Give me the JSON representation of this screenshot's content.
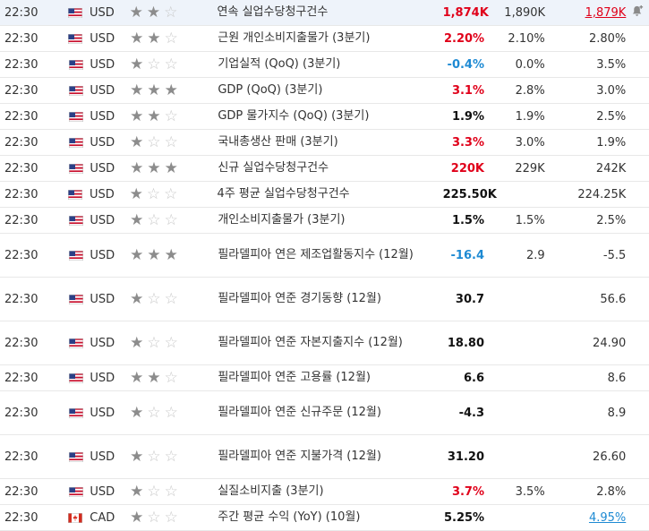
{
  "rows": [
    {
      "time": "22:30",
      "currency": "USD",
      "flag": "us",
      "stars": 2,
      "event": "연속 실업수당청구건수",
      "actual": "1,874K",
      "actual_color": "red",
      "forecast": "1,890K",
      "previous": "1,879K",
      "previous_color": "red",
      "previous_underline": true,
      "alert": true,
      "lines": 1
    },
    {
      "time": "22:30",
      "currency": "USD",
      "flag": "us",
      "stars": 2,
      "event": "근원 개인소비지출물가 (3분기)",
      "actual": "2.20%",
      "actual_color": "red",
      "forecast": "2.10%",
      "previous": "2.80%",
      "previous_color": "",
      "previous_underline": false,
      "alert": false,
      "lines": 1
    },
    {
      "time": "22:30",
      "currency": "USD",
      "flag": "us",
      "stars": 1,
      "event": "기업실적 (QoQ) (3분기)",
      "actual": "-0.4%",
      "actual_color": "blue",
      "forecast": "0.0%",
      "previous": "3.5%",
      "previous_color": "",
      "previous_underline": false,
      "alert": false,
      "lines": 1
    },
    {
      "time": "22:30",
      "currency": "USD",
      "flag": "us",
      "stars": 3,
      "event": "GDP (QoQ) (3분기)",
      "actual": "3.1%",
      "actual_color": "red",
      "forecast": "2.8%",
      "previous": "3.0%",
      "previous_color": "",
      "previous_underline": false,
      "alert": false,
      "lines": 1
    },
    {
      "time": "22:30",
      "currency": "USD",
      "flag": "us",
      "stars": 2,
      "event": "GDP 물가지수 (QoQ) (3분기)",
      "actual": "1.9%",
      "actual_color": "black",
      "forecast": "1.9%",
      "previous": "2.5%",
      "previous_color": "",
      "previous_underline": false,
      "alert": false,
      "lines": 1
    },
    {
      "time": "22:30",
      "currency": "USD",
      "flag": "us",
      "stars": 1,
      "event": "국내총생산 판매 (3분기)",
      "actual": "3.3%",
      "actual_color": "red",
      "forecast": "3.0%",
      "previous": "1.9%",
      "previous_color": "",
      "previous_underline": false,
      "alert": false,
      "lines": 1
    },
    {
      "time": "22:30",
      "currency": "USD",
      "flag": "us",
      "stars": 3,
      "event": "신규 실업수당청구건수",
      "actual": "220K",
      "actual_color": "red",
      "forecast": "229K",
      "previous": "242K",
      "previous_color": "",
      "previous_underline": false,
      "alert": false,
      "lines": 1
    },
    {
      "time": "22:30",
      "currency": "USD",
      "flag": "us",
      "stars": 1,
      "event": "4주 평균 실업수당청구건수",
      "actual": "225.50K",
      "actual_color": "black",
      "forecast": "",
      "previous": "224.25K",
      "previous_color": "",
      "previous_underline": false,
      "alert": false,
      "lines": 1
    },
    {
      "time": "22:30",
      "currency": "USD",
      "flag": "us",
      "stars": 1,
      "event": "개인소비지출물가 (3분기)",
      "actual": "1.5%",
      "actual_color": "black",
      "forecast": "1.5%",
      "previous": "2.5%",
      "previous_color": "",
      "previous_underline": false,
      "alert": false,
      "lines": 1
    },
    {
      "time": "22:30",
      "currency": "USD",
      "flag": "us",
      "stars": 3,
      "event": "필라델피아 연은 제조업활동지수 (12월)",
      "actual": "-16.4",
      "actual_color": "blue",
      "forecast": "2.9",
      "previous": "-5.5",
      "previous_color": "",
      "previous_underline": false,
      "alert": false,
      "lines": 2
    },
    {
      "time": "22:30",
      "currency": "USD",
      "flag": "us",
      "stars": 1,
      "event": "필라델피아 연준 경기동향 (12월)",
      "actual": "30.7",
      "actual_color": "black",
      "forecast": "",
      "previous": "56.6",
      "previous_color": "",
      "previous_underline": false,
      "alert": false,
      "lines": 2
    },
    {
      "time": "22:30",
      "currency": "USD",
      "flag": "us",
      "stars": 1,
      "event": "필라델피아 연준 자본지출지수 (12월)",
      "actual": "18.80",
      "actual_color": "black",
      "forecast": "",
      "previous": "24.90",
      "previous_color": "",
      "previous_underline": false,
      "alert": false,
      "lines": 2
    },
    {
      "time": "22:30",
      "currency": "USD",
      "flag": "us",
      "stars": 2,
      "event": "필라델피아 연준 고용률 (12월)",
      "actual": "6.6",
      "actual_color": "black",
      "forecast": "",
      "previous": "8.6",
      "previous_color": "",
      "previous_underline": false,
      "alert": false,
      "lines": 1
    },
    {
      "time": "22:30",
      "currency": "USD",
      "flag": "us",
      "stars": 1,
      "event": "필라델피아 연준 신규주문 (12월)",
      "actual": "-4.3",
      "actual_color": "black",
      "forecast": "",
      "previous": "8.9",
      "previous_color": "",
      "previous_underline": false,
      "alert": false,
      "lines": 2
    },
    {
      "time": "22:30",
      "currency": "USD",
      "flag": "us",
      "stars": 1,
      "event": "필라델피아 연준 지불가격 (12월)",
      "actual": "31.20",
      "actual_color": "black",
      "forecast": "",
      "previous": "26.60",
      "previous_color": "",
      "previous_underline": false,
      "alert": false,
      "lines": 2
    },
    {
      "time": "22:30",
      "currency": "USD",
      "flag": "us",
      "stars": 1,
      "event": "실질소비지출 (3분기)",
      "actual": "3.7%",
      "actual_color": "red",
      "forecast": "3.5%",
      "previous": "2.8%",
      "previous_color": "",
      "previous_underline": false,
      "alert": false,
      "lines": 1
    },
    {
      "time": "22:30",
      "currency": "CAD",
      "flag": "ca",
      "stars": 1,
      "event": "주간 평균 수익 (YoY) (10월)",
      "actual": "5.25%",
      "actual_color": "black",
      "forecast": "",
      "previous": "4.95%",
      "previous_color": "blue",
      "previous_underline": true,
      "alert": false,
      "lines": 1
    }
  ],
  "colors": {
    "red": "#e0001a",
    "blue": "#1e8ad3",
    "row_highlight": "#eef3fa"
  }
}
